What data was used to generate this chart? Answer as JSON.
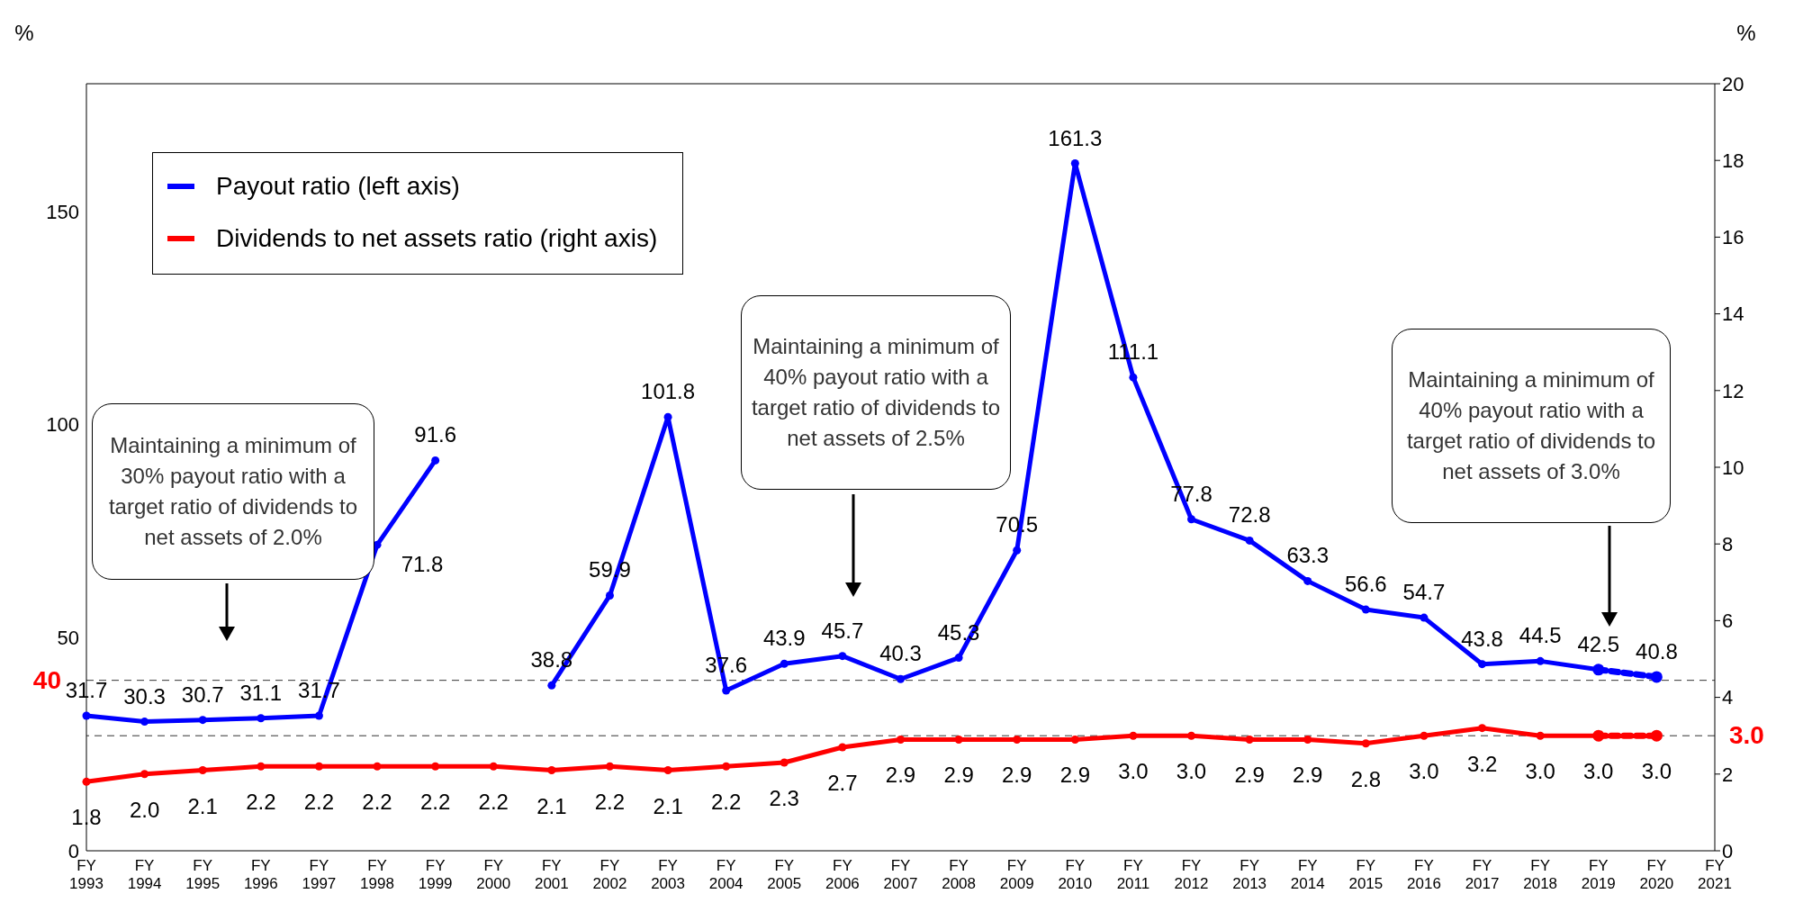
{
  "chart_data": {
    "type": "line",
    "ylabel": "%",
    "y2label": "%",
    "categories": [
      "FY 1993",
      "FY 1994",
      "FY 1995",
      "FY 1996",
      "FY 1997",
      "FY 1998",
      "FY 1999",
      "FY 2000",
      "FY 2001",
      "FY 2002",
      "FY 2003",
      "FY 2004",
      "FY 2005",
      "FY 2006",
      "FY 2007",
      "FY 2008",
      "FY 2009",
      "FY 2010",
      "FY 2011",
      "FY 2012",
      "FY 2013",
      "FY 2014",
      "FY 2015",
      "FY 2016",
      "FY 2017",
      "FY 2018",
      "FY 2019",
      "FY 2020",
      "FY 2021"
    ],
    "series": [
      {
        "name": "Payout ratio (left axis)",
        "color": "#0000ff",
        "line_style": "solid",
        "values": [
          31.7,
          30.3,
          30.7,
          31.1,
          31.7,
          71.8,
          91.6,
          null,
          38.8,
          59.9,
          101.8,
          37.6,
          43.9,
          45.7,
          40.3,
          45.3,
          70.5,
          161.3,
          111.1,
          77.8,
          72.8,
          63.3,
          56.6,
          54.7,
          43.8,
          44.5,
          42.5,
          null,
          null
        ],
        "value_labels": [
          "31.7",
          "30.3",
          "30.7",
          "31.1",
          "31.7",
          "71.8",
          "91.6",
          null,
          "38.8",
          "59.9",
          "101.8",
          "37.6",
          "43.9",
          "45.7",
          "40.3",
          "45.3",
          "70.5",
          "161.3",
          "111.1",
          "77.8",
          "72.8",
          "63.3",
          "56.6",
          "54.7",
          "43.8",
          "44.5",
          "42.5",
          null,
          null
        ]
      },
      {
        "name": "Dividends to net assets ratio (right axis)",
        "color": "#ff0000",
        "axis": "y2",
        "line_style": "solid",
        "values": [
          1.8,
          2.0,
          2.1,
          2.2,
          2.2,
          2.2,
          2.2,
          2.2,
          2.1,
          2.2,
          2.1,
          2.2,
          2.3,
          2.7,
          2.9,
          2.9,
          2.9,
          2.9,
          3.0,
          3.0,
          2.9,
          2.9,
          2.8,
          3.0,
          3.2,
          3.0,
          3.0,
          null,
          null
        ],
        "value_labels": [
          "1.8",
          "2.0",
          "2.1",
          "2.2",
          "2.2",
          "2.2",
          "2.2",
          "2.2",
          "2.1",
          "2.2",
          "2.1",
          "2.2",
          "2.3",
          "2.7",
          "2.9",
          "2.9",
          "2.9",
          "2.9",
          "3.0",
          "3.0",
          "2.9",
          "2.9",
          "2.8",
          "3.0",
          "3.2",
          "3.0",
          "3.0",
          null,
          null
        ]
      },
      {
        "color": "#0000ff",
        "line_style": "dashed",
        "values": [
          null,
          null,
          null,
          null,
          null,
          null,
          null,
          null,
          null,
          null,
          null,
          null,
          null,
          null,
          null,
          null,
          null,
          null,
          null,
          null,
          null,
          null,
          null,
          null,
          null,
          null,
          42.5,
          40.8,
          null
        ],
        "value_labels": [
          null,
          null,
          null,
          null,
          null,
          null,
          null,
          null,
          null,
          null,
          null,
          null,
          null,
          null,
          null,
          null,
          null,
          null,
          null,
          null,
          null,
          null,
          null,
          null,
          null,
          null,
          null,
          "40.8",
          null
        ]
      },
      {
        "color": "#ff0000",
        "axis": "y2",
        "line_style": "dashed",
        "values": [
          null,
          null,
          null,
          null,
          null,
          null,
          null,
          null,
          null,
          null,
          null,
          null,
          null,
          null,
          null,
          null,
          null,
          null,
          null,
          null,
          null,
          null,
          null,
          null,
          null,
          null,
          3.0,
          3.0,
          null
        ],
        "value_labels": [
          null,
          null,
          null,
          null,
          null,
          null,
          null,
          null,
          null,
          null,
          null,
          null,
          null,
          null,
          null,
          null,
          null,
          null,
          null,
          null,
          null,
          null,
          null,
          null,
          null,
          null,
          null,
          "3.0",
          null
        ]
      }
    ],
    "ylim": [
      0,
      180
    ],
    "yticks": [
      0,
      50,
      100,
      150
    ],
    "y2lim": [
      0,
      20
    ],
    "y2ticks": [
      0,
      2,
      4,
      6,
      8,
      10,
      12,
      14,
      16,
      18,
      20
    ],
    "ref_lines": [
      {
        "axis": "y",
        "value": 40,
        "label": "40",
        "color": "#333333",
        "line_style": "dashed"
      },
      {
        "axis": "y2",
        "value": 3.0,
        "label": "3.0",
        "color": "#333333",
        "line_style": "dashed"
      }
    ],
    "annotations": [
      "Maintaining a minimum of 30% payout ratio with a target ratio of dividends to net assets of 2.0%",
      "Maintaining a minimum of 40% payout ratio with a target ratio of dividends to net assets of 2.5%",
      "Maintaining a minimum of 40% payout ratio with a target ratio of dividends to net assets of 3.0%"
    ],
    "marker": "circle",
    "legend": "top left",
    "grid": false
  }
}
